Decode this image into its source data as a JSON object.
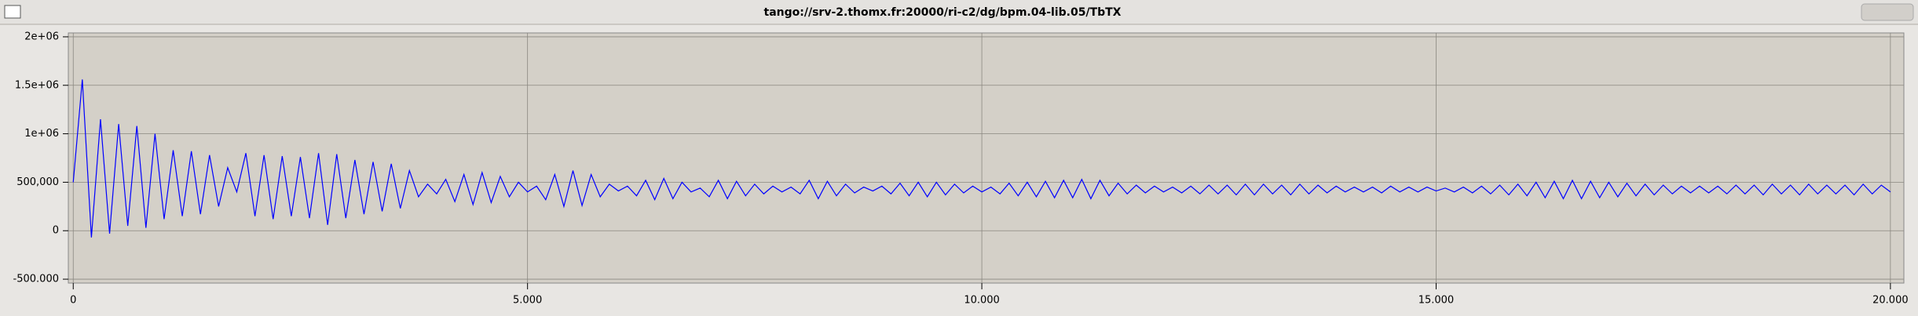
{
  "window_title": "tango://srv-2.thomx.fr:20000/ri-c2/dg/bpm.04-lib.05/TbTX",
  "chart_data": {
    "type": "line",
    "x": [
      0,
      100,
      200,
      300,
      400,
      500,
      600,
      700,
      800,
      900,
      1000,
      1100,
      1200,
      1300,
      1400,
      1500,
      1600,
      1700,
      1800,
      1900,
      2000,
      2100,
      2200,
      2300,
      2400,
      2500,
      2600,
      2700,
      2800,
      2900,
      3000,
      3100,
      3200,
      3300,
      3400,
      3500,
      3600,
      3700,
      3800,
      3900,
      4000,
      4100,
      4200,
      4300,
      4400,
      4500,
      4600,
      4700,
      4800,
      4900,
      5000,
      5100,
      5200,
      5300,
      5400,
      5500,
      5600,
      5700,
      5800,
      5900,
      6000,
      6100,
      6200,
      6300,
      6400,
      6500,
      6600,
      6700,
      6800,
      6900,
      7000,
      7100,
      7200,
      7300,
      7400,
      7500,
      7600,
      7700,
      7800,
      7900,
      8000,
      8100,
      8200,
      8300,
      8400,
      8500,
      8600,
      8700,
      8800,
      8900,
      9000,
      9100,
      9200,
      9300,
      9400,
      9500,
      9600,
      9700,
      9800,
      9900,
      10000,
      10100,
      10200,
      10300,
      10400,
      10500,
      10600,
      10700,
      10800,
      10900,
      11000,
      11100,
      11200,
      11300,
      11400,
      11500,
      11600,
      11700,
      11800,
      11900,
      12000,
      12100,
      12200,
      12300,
      12400,
      12500,
      12600,
      12700,
      12800,
      12900,
      13000,
      13100,
      13200,
      13300,
      13400,
      13500,
      13600,
      13700,
      13800,
      13900,
      14000,
      14100,
      14200,
      14300,
      14400,
      14500,
      14600,
      14700,
      14800,
      14900,
      15000,
      15100,
      15200,
      15300,
      15400,
      15500,
      15600,
      15700,
      15800,
      15900,
      16000,
      16100,
      16200,
      16300,
      16400,
      16500,
      16600,
      16700,
      16800,
      16900,
      17000,
      17100,
      17200,
      17300,
      17400,
      17500,
      17600,
      17700,
      17800,
      17900,
      18000,
      18100,
      18200,
      18300,
      18400,
      18500,
      18600,
      18700,
      18800,
      18900,
      19000,
      19100,
      19200,
      19300,
      19400,
      19500,
      19600,
      19700,
      19800,
      19900,
      20000
    ],
    "series": [
      {
        "color": "#0000ff",
        "values": [
          500000,
          1560000,
          -70000,
          1150000,
          -30000,
          1100000,
          50000,
          1080000,
          30000,
          1000000,
          120000,
          830000,
          150000,
          820000,
          170000,
          780000,
          250000,
          650000,
          400000,
          800000,
          150000,
          780000,
          120000,
          770000,
          150000,
          760000,
          130000,
          800000,
          60000,
          790000,
          130000,
          730000,
          170000,
          710000,
          200000,
          690000,
          230000,
          620000,
          350000,
          480000,
          380000,
          530000,
          300000,
          580000,
          270000,
          600000,
          290000,
          560000,
          350000,
          500000,
          400000,
          460000,
          320000,
          580000,
          250000,
          620000,
          260000,
          580000,
          350000,
          480000,
          410000,
          460000,
          360000,
          520000,
          320000,
          540000,
          330000,
          500000,
          400000,
          440000,
          350000,
          520000,
          330000,
          510000,
          360000,
          480000,
          380000,
          460000,
          400000,
          450000,
          380000,
          520000,
          330000,
          510000,
          360000,
          480000,
          390000,
          450000,
          410000,
          460000,
          380000,
          490000,
          360000,
          500000,
          350000,
          500000,
          370000,
          480000,
          390000,
          460000,
          400000,
          450000,
          380000,
          490000,
          360000,
          500000,
          350000,
          510000,
          340000,
          520000,
          340000,
          530000,
          330000,
          520000,
          360000,
          490000,
          380000,
          470000,
          390000,
          460000,
          400000,
          450000,
          390000,
          460000,
          380000,
          470000,
          380000,
          470000,
          370000,
          480000,
          370000,
          480000,
          380000,
          470000,
          370000,
          480000,
          380000,
          470000,
          390000,
          460000,
          400000,
          450000,
          400000,
          450000,
          390000,
          460000,
          400000,
          450000,
          400000,
          450000,
          410000,
          440000,
          400000,
          450000,
          390000,
          460000,
          380000,
          470000,
          370000,
          480000,
          360000,
          500000,
          340000,
          510000,
          330000,
          520000,
          330000,
          510000,
          340000,
          500000,
          350000,
          490000,
          360000,
          480000,
          370000,
          470000,
          380000,
          460000,
          390000,
          460000,
          390000,
          460000,
          380000,
          470000,
          380000,
          470000,
          370000,
          480000,
          380000,
          470000,
          370000,
          480000,
          380000,
          470000,
          380000,
          470000,
          370000,
          480000,
          380000,
          470000,
          400000
        ]
      }
    ],
    "xlim": [
      -54,
      20148
    ],
    "ylim": [
      -540000,
      2040000
    ],
    "xticks": [
      0,
      {
        "value": 5000,
        "label": "5.000"
      },
      {
        "value": 10000,
        "label": "10.000"
      },
      {
        "value": 15000,
        "label": "15.000"
      },
      {
        "value": 20000,
        "label": "20.000"
      }
    ],
    "yticks": [
      {
        "value": -500000,
        "label": "-500.000"
      },
      0,
      {
        "value": 500000,
        "label": "500,000"
      },
      {
        "value": 1000000,
        "label": "1e+06"
      },
      {
        "value": 1500000,
        "label": "1.5e+06"
      },
      {
        "value": 2000000,
        "label": "2e+06"
      }
    ],
    "grid": true
  }
}
